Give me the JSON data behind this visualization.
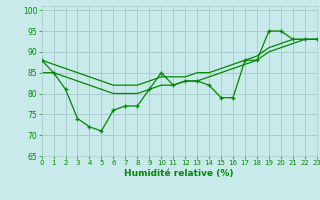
{
  "xlabel": "Humidité relative (%)",
  "background_color": "#c8eaea",
  "grid_color": "#aacccc",
  "line_color": "#008800",
  "xlim": [
    0,
    23
  ],
  "ylim": [
    65,
    101
  ],
  "yticks": [
    65,
    70,
    75,
    80,
    85,
    90,
    95,
    100
  ],
  "xticks": [
    0,
    1,
    2,
    3,
    4,
    5,
    6,
    7,
    8,
    9,
    10,
    11,
    12,
    13,
    14,
    15,
    16,
    17,
    18,
    19,
    20,
    21,
    22,
    23
  ],
  "x": [
    0,
    1,
    2,
    3,
    4,
    5,
    6,
    7,
    8,
    9,
    10,
    11,
    12,
    13,
    14,
    15,
    16,
    17,
    18,
    19,
    20,
    21,
    22,
    23
  ],
  "y_main": [
    88,
    85,
    81,
    74,
    72,
    71,
    76,
    77,
    77,
    81,
    85,
    82,
    83,
    83,
    82,
    79,
    79,
    88,
    88,
    95,
    95,
    93,
    93,
    93
  ],
  "y_trend1": [
    85,
    85,
    84,
    83,
    82,
    81,
    80,
    80,
    80,
    81,
    82,
    82,
    83,
    83,
    84,
    85,
    86,
    87,
    88,
    90,
    91,
    92,
    93,
    93
  ],
  "y_trend2": [
    88,
    87,
    86,
    85,
    84,
    83,
    82,
    82,
    82,
    83,
    84,
    84,
    84,
    85,
    85,
    86,
    87,
    88,
    89,
    91,
    92,
    93,
    93,
    93
  ]
}
